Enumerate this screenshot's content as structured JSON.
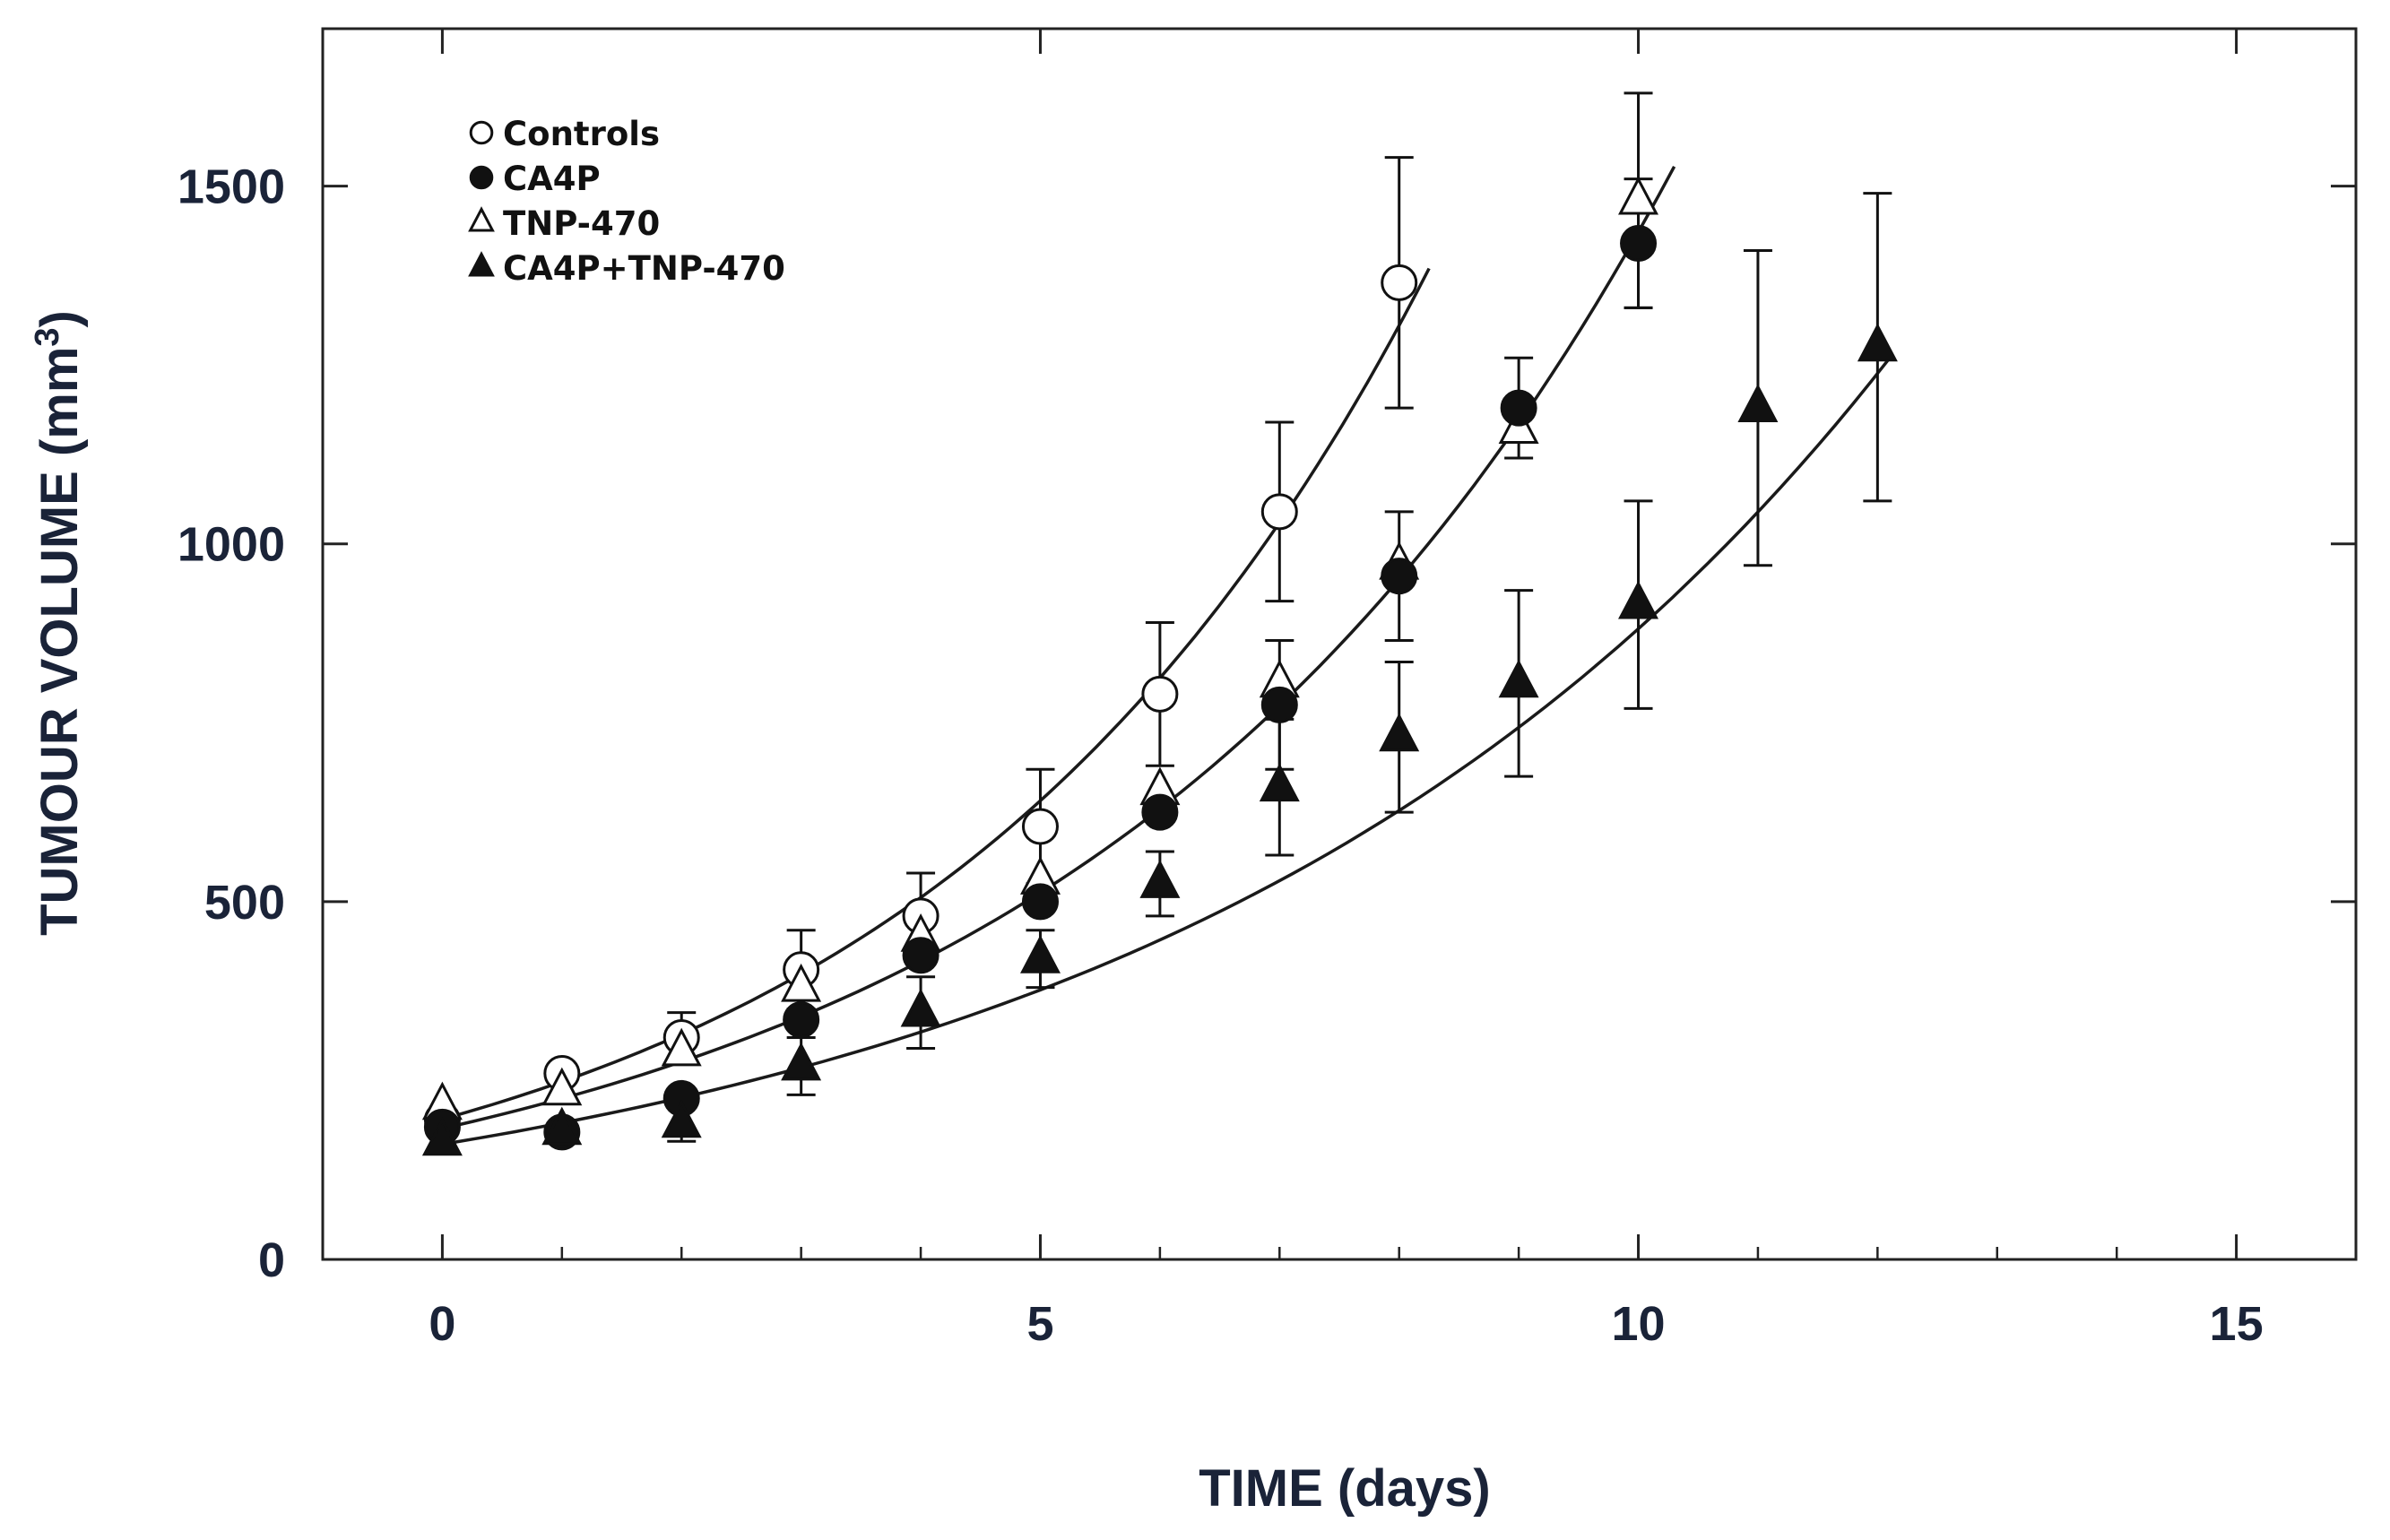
{
  "chart_data": {
    "type": "scatter",
    "title": "",
    "xlabel": "TIME (days)",
    "ylabel": "TUMOUR VOLUME (mm",
    "ylabel_superscript": "3",
    "ylabel_suffix": ")",
    "xlim": [
      -1,
      16
    ],
    "ylim": [
      0,
      1720
    ],
    "xticks": [
      0,
      5,
      10,
      15
    ],
    "yticks": [
      0,
      500,
      1000,
      1500
    ],
    "minor_xticks": [
      1,
      2,
      3,
      4,
      6,
      7,
      8,
      9,
      11,
      12,
      13,
      14
    ],
    "grid": false,
    "legend_position": "top-left",
    "series": [
      {
        "name": "Controls",
        "marker": "circle-open",
        "x": [
          0,
          1,
          2,
          3,
          4,
          5,
          6,
          7,
          8
        ],
        "y": [
          195,
          260,
          310,
          405,
          480,
          605,
          790,
          1045,
          1365
        ],
        "err": [
          0,
          0,
          35,
          55,
          60,
          80,
          100,
          125,
          175
        ],
        "fit_curve": {
          "a": 196,
          "b": 0.237,
          "x_end": 8.25
        }
      },
      {
        "name": "CA4P",
        "marker": "circle-filled",
        "x": [
          0,
          1,
          2,
          3,
          4,
          5,
          6,
          7,
          8,
          9,
          10
        ],
        "y": [
          185,
          178,
          225,
          335,
          425,
          500,
          625,
          775,
          955,
          1190,
          1420
        ],
        "err": [
          0,
          0,
          0,
          0,
          0,
          0,
          0,
          90,
          90,
          70,
          90
        ],
        "fit_curve": {
          "a": 183,
          "b": 0.206,
          "x_end": 10.3
        }
      },
      {
        "name": "TNP-470",
        "marker": "triangle-open",
        "x": [
          0,
          1,
          2,
          3,
          4,
          5,
          6,
          7,
          8,
          9,
          10
        ],
        "y": [
          215,
          235,
          290,
          380,
          450,
          530,
          655,
          805,
          970,
          1160,
          1480
        ],
        "err": [
          0,
          0,
          0,
          0,
          0,
          0,
          0,
          0,
          0,
          0,
          150
        ]
      },
      {
        "name": "CA4P+TNP-470",
        "marker": "triangle-filled",
        "x": [
          0,
          1,
          2,
          3,
          4,
          5,
          6,
          7,
          8,
          9,
          10,
          11,
          12
        ],
        "y": [
          165,
          180,
          190,
          270,
          345,
          420,
          525,
          660,
          730,
          805,
          915,
          1190,
          1275
        ],
        "err": [
          0,
          0,
          25,
          40,
          50,
          40,
          45,
          95,
          105,
          130,
          145,
          220,
          215
        ],
        "fit_curve": {
          "a": 161,
          "b": 0.17,
          "x_end": 12.1
        }
      }
    ]
  }
}
